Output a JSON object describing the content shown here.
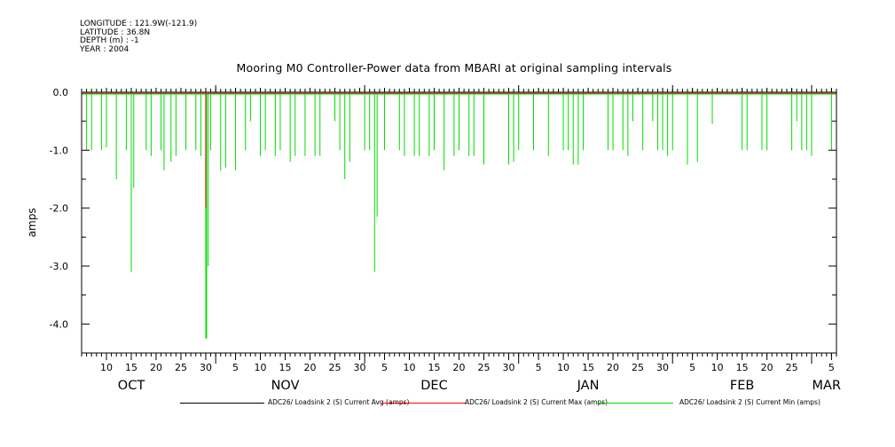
{
  "header": {
    "longitude": "LONGITUDE : 121.9W(-121.9)",
    "latitude": "LATITUDE : 36.8N",
    "depth": "DEPTH (m) : -1",
    "year": "YEAR : 2004"
  },
  "chart_data": {
    "type": "line",
    "title": "Mooring M0 Controller-Power data from MBARI at original sampling intervals",
    "ylabel": "amps",
    "xlabel": "",
    "ylim": [
      -4.5,
      0.0
    ],
    "yticks": [
      0.0,
      -1.0,
      -2.0,
      -3.0,
      -4.0
    ],
    "ytick_labels": [
      "0.0",
      "-1.0",
      "-2.0",
      "-3.0",
      "-4.0"
    ],
    "xlim": [
      "2004-10-05",
      "2005-03-06"
    ],
    "x_day_ticks": [
      {
        "date": "2004-10-10",
        "label": "10"
      },
      {
        "date": "2004-10-15",
        "label": "15"
      },
      {
        "date": "2004-10-20",
        "label": "20"
      },
      {
        "date": "2004-10-25",
        "label": "25"
      },
      {
        "date": "2004-10-30",
        "label": "30"
      },
      {
        "date": "2004-11-05",
        "label": "5"
      },
      {
        "date": "2004-11-10",
        "label": "10"
      },
      {
        "date": "2004-11-15",
        "label": "15"
      },
      {
        "date": "2004-11-20",
        "label": "20"
      },
      {
        "date": "2004-11-25",
        "label": "25"
      },
      {
        "date": "2004-11-30",
        "label": "30"
      },
      {
        "date": "2004-12-05",
        "label": "5"
      },
      {
        "date": "2004-12-10",
        "label": "10"
      },
      {
        "date": "2004-12-15",
        "label": "15"
      },
      {
        "date": "2004-12-20",
        "label": "20"
      },
      {
        "date": "2004-12-25",
        "label": "25"
      },
      {
        "date": "2004-12-30",
        "label": "30"
      },
      {
        "date": "2005-01-05",
        "label": "5"
      },
      {
        "date": "2005-01-10",
        "label": "10"
      },
      {
        "date": "2005-01-15",
        "label": "15"
      },
      {
        "date": "2005-01-20",
        "label": "20"
      },
      {
        "date": "2005-01-25",
        "label": "25"
      },
      {
        "date": "2005-01-30",
        "label": "30"
      },
      {
        "date": "2005-02-05",
        "label": "5"
      },
      {
        "date": "2005-02-10",
        "label": "10"
      },
      {
        "date": "2005-02-15",
        "label": "15"
      },
      {
        "date": "2005-02-20",
        "label": "20"
      },
      {
        "date": "2005-02-25",
        "label": "25"
      },
      {
        "date": "2005-03-05",
        "label": "5"
      }
    ],
    "month_labels": [
      {
        "date": "2004-10-15",
        "label": "OCT"
      },
      {
        "date": "2004-11-15",
        "label": "NOV"
      },
      {
        "date": "2004-12-15",
        "label": "DEC"
      },
      {
        "date": "2005-01-15",
        "label": "JAN"
      },
      {
        "date": "2005-02-15",
        "label": "FEB"
      },
      {
        "date": "2005-03-04",
        "label": "MAR"
      }
    ],
    "month_boundaries": [
      "2004-11-01",
      "2004-12-01",
      "2005-01-01",
      "2005-02-01",
      "2005-03-01"
    ],
    "grid": false,
    "legend_position": "bottom",
    "series": [
      {
        "name": "ADC26/ Loadsink 2 (S) Current Avg (amps)",
        "color": "#000000",
        "baseline": -0.03
      },
      {
        "name": "ADC26/ Loadsink 2 (S) Current Max (amps)",
        "color": "#ff0000",
        "baseline": -0.02,
        "spikes": [
          {
            "x": "2004-10-30",
            "y": -2.0
          }
        ]
      },
      {
        "name": "ADC26/ Loadsink 2 (S) Current Min (amps)",
        "color": "#00dd00",
        "baseline": -0.03,
        "spikes": [
          {
            "x": "2004-10-06",
            "y": -1.0
          },
          {
            "x": "2004-10-07",
            "y": -1.0
          },
          {
            "x": "2004-10-09",
            "y": -1.0
          },
          {
            "x": "2004-10-10",
            "y": -0.95
          },
          {
            "x": "2004-10-12",
            "y": -1.5
          },
          {
            "x": "2004-10-14",
            "y": -1.0
          },
          {
            "x": "2004-10-15",
            "y": -3.1
          },
          {
            "x": "2004-10-15.5",
            "y": -1.65
          },
          {
            "x": "2004-10-18",
            "y": -1.0
          },
          {
            "x": "2004-10-19",
            "y": -1.1
          },
          {
            "x": "2004-10-21",
            "y": -1.0
          },
          {
            "x": "2004-10-21.6",
            "y": -1.35
          },
          {
            "x": "2004-10-23",
            "y": -1.2
          },
          {
            "x": "2004-10-24",
            "y": -1.1
          },
          {
            "x": "2004-10-26",
            "y": -1.0
          },
          {
            "x": "2004-10-28",
            "y": -1.0
          },
          {
            "x": "2004-10-29",
            "y": -1.1
          },
          {
            "x": "2004-10-30",
            "y": -4.25
          },
          {
            "x": "2004-10-30.5",
            "y": -3.0
          },
          {
            "x": "2004-10-31",
            "y": -1.0
          },
          {
            "x": "2004-11-02",
            "y": -1.35
          },
          {
            "x": "2004-11-03",
            "y": -1.3
          },
          {
            "x": "2004-11-05",
            "y": -1.35
          },
          {
            "x": "2004-11-07",
            "y": -1.0
          },
          {
            "x": "2004-11-08",
            "y": -0.5
          },
          {
            "x": "2004-11-10",
            "y": -1.1
          },
          {
            "x": "2004-11-11",
            "y": -1.0
          },
          {
            "x": "2004-11-13",
            "y": -1.1
          },
          {
            "x": "2004-11-14",
            "y": -1.0
          },
          {
            "x": "2004-11-16",
            "y": -1.2
          },
          {
            "x": "2004-11-17",
            "y": -1.1
          },
          {
            "x": "2004-11-19",
            "y": -1.1
          },
          {
            "x": "2004-11-21",
            "y": -1.1
          },
          {
            "x": "2004-11-22",
            "y": -1.1
          },
          {
            "x": "2004-11-25",
            "y": -0.5
          },
          {
            "x": "2004-11-26",
            "y": -1.0
          },
          {
            "x": "2004-11-27",
            "y": -1.5
          },
          {
            "x": "2004-11-28",
            "y": -1.2
          },
          {
            "x": "2004-12-01",
            "y": -1.0
          },
          {
            "x": "2004-12-02",
            "y": -1.0
          },
          {
            "x": "2004-12-03",
            "y": -3.1
          },
          {
            "x": "2004-12-03.5",
            "y": -2.15
          },
          {
            "x": "2004-12-05",
            "y": -1.0
          },
          {
            "x": "2004-12-08",
            "y": -1.0
          },
          {
            "x": "2004-12-09",
            "y": -1.1
          },
          {
            "x": "2004-12-11",
            "y": -1.1
          },
          {
            "x": "2004-12-12",
            "y": -1.1
          },
          {
            "x": "2004-12-14",
            "y": -1.1
          },
          {
            "x": "2004-12-15",
            "y": -1.0
          },
          {
            "x": "2004-12-17",
            "y": -1.35
          },
          {
            "x": "2004-12-19",
            "y": -1.1
          },
          {
            "x": "2004-12-20",
            "y": -1.0
          },
          {
            "x": "2004-12-22",
            "y": -1.1
          },
          {
            "x": "2004-12-23",
            "y": -1.1
          },
          {
            "x": "2004-12-25",
            "y": -1.25
          },
          {
            "x": "2004-12-30",
            "y": -1.25
          },
          {
            "x": "2004-12-31",
            "y": -1.2
          },
          {
            "x": "2005-01-01",
            "y": -1.0
          },
          {
            "x": "2005-01-04",
            "y": -1.0
          },
          {
            "x": "2005-01-07",
            "y": -1.1
          },
          {
            "x": "2005-01-10",
            "y": -1.0
          },
          {
            "x": "2005-01-11",
            "y": -1.0
          },
          {
            "x": "2005-01-12",
            "y": -1.25
          },
          {
            "x": "2005-01-13",
            "y": -1.25
          },
          {
            "x": "2005-01-14",
            "y": -1.0
          },
          {
            "x": "2005-01-19",
            "y": -1.0
          },
          {
            "x": "2005-01-20",
            "y": -1.0
          },
          {
            "x": "2005-01-22",
            "y": -1.0
          },
          {
            "x": "2005-01-23",
            "y": -1.1
          },
          {
            "x": "2005-01-24",
            "y": -0.5
          },
          {
            "x": "2005-01-26",
            "y": -1.0
          },
          {
            "x": "2005-01-28",
            "y": -0.5
          },
          {
            "x": "2005-01-29",
            "y": -1.0
          },
          {
            "x": "2005-01-30",
            "y": -1.0
          },
          {
            "x": "2005-01-31",
            "y": -1.1
          },
          {
            "x": "2005-02-01",
            "y": -1.0
          },
          {
            "x": "2005-02-04",
            "y": -1.25
          },
          {
            "x": "2005-02-06",
            "y": -1.2
          },
          {
            "x": "2005-02-09",
            "y": -0.55
          },
          {
            "x": "2005-02-15",
            "y": -1.0
          },
          {
            "x": "2005-02-16",
            "y": -1.0
          },
          {
            "x": "2005-02-19",
            "y": -1.0
          },
          {
            "x": "2005-02-20",
            "y": -1.0
          },
          {
            "x": "2005-02-25",
            "y": -1.0
          },
          {
            "x": "2005-02-26",
            "y": -0.5
          },
          {
            "x": "2005-02-27",
            "y": -1.0
          },
          {
            "x": "2005-02-28",
            "y": -1.0
          },
          {
            "x": "2005-03-01",
            "y": -1.1
          },
          {
            "x": "2005-03-05",
            "y": -1.0
          }
        ]
      }
    ]
  }
}
